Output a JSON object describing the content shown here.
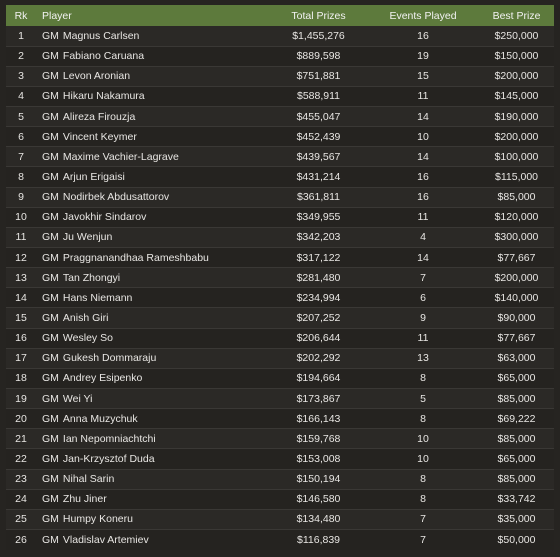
{
  "table": {
    "headers": {
      "rank": "Rk",
      "player": "Player",
      "total_prizes": "Total Prizes",
      "events_played": "Events Played",
      "best_prize": "Best Prize"
    },
    "rows": [
      {
        "rank": "1",
        "title": "GM",
        "name": "Magnus Carlsen",
        "total": "$1,455,276",
        "events": "16",
        "best": "$250,000"
      },
      {
        "rank": "2",
        "title": "GM",
        "name": "Fabiano Caruana",
        "total": "$889,598",
        "events": "19",
        "best": "$150,000"
      },
      {
        "rank": "3",
        "title": "GM",
        "name": "Levon Aronian",
        "total": "$751,881",
        "events": "15",
        "best": "$200,000"
      },
      {
        "rank": "4",
        "title": "GM",
        "name": "Hikaru Nakamura",
        "total": "$588,911",
        "events": "11",
        "best": "$145,000"
      },
      {
        "rank": "5",
        "title": "GM",
        "name": "Alireza Firouzja",
        "total": "$455,047",
        "events": "14",
        "best": "$190,000"
      },
      {
        "rank": "6",
        "title": "GM",
        "name": "Vincent Keymer",
        "total": "$452,439",
        "events": "10",
        "best": "$200,000"
      },
      {
        "rank": "7",
        "title": "GM",
        "name": "Maxime Vachier-Lagrave",
        "total": "$439,567",
        "events": "14",
        "best": "$100,000"
      },
      {
        "rank": "8",
        "title": "GM",
        "name": "Arjun Erigaisi",
        "total": "$431,214",
        "events": "16",
        "best": "$115,000"
      },
      {
        "rank": "9",
        "title": "GM",
        "name": "Nodirbek Abdusattorov",
        "total": "$361,811",
        "events": "16",
        "best": "$85,000"
      },
      {
        "rank": "10",
        "title": "GM",
        "name": "Javokhir Sindarov",
        "total": "$349,955",
        "events": "11",
        "best": "$120,000"
      },
      {
        "rank": "11",
        "title": "GM",
        "name": "Ju Wenjun",
        "total": "$342,203",
        "events": "4",
        "best": "$300,000"
      },
      {
        "rank": "12",
        "title": "GM",
        "name": "Praggnanandhaa Rameshbabu",
        "total": "$317,122",
        "events": "14",
        "best": "$77,667"
      },
      {
        "rank": "13",
        "title": "GM",
        "name": "Tan Zhongyi",
        "total": "$281,480",
        "events": "7",
        "best": "$200,000"
      },
      {
        "rank": "14",
        "title": "GM",
        "name": "Hans Niemann",
        "total": "$234,994",
        "events": "6",
        "best": "$140,000"
      },
      {
        "rank": "15",
        "title": "GM",
        "name": "Anish Giri",
        "total": "$207,252",
        "events": "9",
        "best": "$90,000"
      },
      {
        "rank": "16",
        "title": "GM",
        "name": "Wesley So",
        "total": "$206,644",
        "events": "11",
        "best": "$77,667"
      },
      {
        "rank": "17",
        "title": "GM",
        "name": "Gukesh Dommaraju",
        "total": "$202,292",
        "events": "13",
        "best": "$63,000"
      },
      {
        "rank": "18",
        "title": "GM",
        "name": "Andrey Esipenko",
        "total": "$194,664",
        "events": "8",
        "best": "$65,000"
      },
      {
        "rank": "19",
        "title": "GM",
        "name": "Wei Yi",
        "total": "$173,867",
        "events": "5",
        "best": "$85,000"
      },
      {
        "rank": "20",
        "title": "GM",
        "name": "Anna Muzychuk",
        "total": "$166,143",
        "events": "8",
        "best": "$69,222"
      },
      {
        "rank": "21",
        "title": "GM",
        "name": "Ian Nepomniachtchi",
        "total": "$159,768",
        "events": "10",
        "best": "$85,000"
      },
      {
        "rank": "22",
        "title": "GM",
        "name": "Jan-Krzysztof Duda",
        "total": "$153,008",
        "events": "10",
        "best": "$65,000"
      },
      {
        "rank": "23",
        "title": "GM",
        "name": "Nihal Sarin",
        "total": "$150,194",
        "events": "8",
        "best": "$85,000"
      },
      {
        "rank": "24",
        "title": "GM",
        "name": "Zhu Jiner",
        "total": "$146,580",
        "events": "8",
        "best": "$33,742"
      },
      {
        "rank": "25",
        "title": "GM",
        "name": "Humpy Koneru",
        "total": "$134,480",
        "events": "7",
        "best": "$35,000"
      },
      {
        "rank": "26",
        "title": "GM",
        "name": "Vladislav Artemiev",
        "total": "$116,839",
        "events": "7",
        "best": "$50,000"
      }
    ]
  },
  "colors": {
    "header_bg": "#5d7a3c",
    "page_bg": "#262421",
    "row_odd": "#2b2926",
    "row_even": "#252320",
    "text": "#e8e6e3"
  }
}
